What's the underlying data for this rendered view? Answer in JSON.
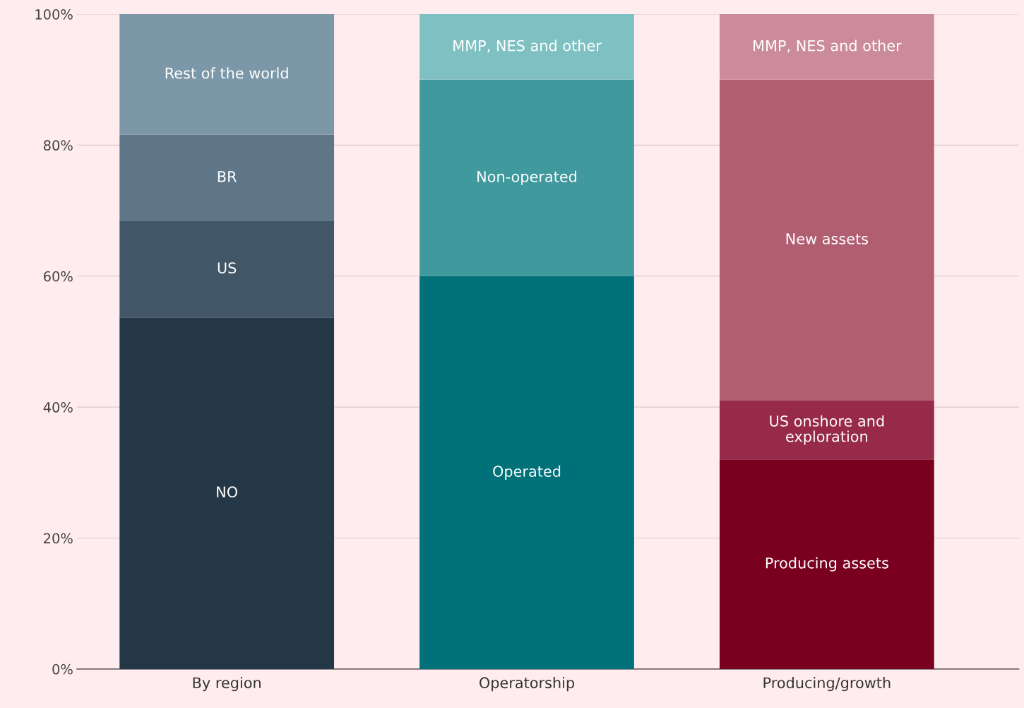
{
  "chart_data": {
    "type": "bar",
    "stacked": true,
    "categories": [
      "By region",
      "Operatorship",
      "Producing/growth"
    ],
    "ylim": [
      0,
      100
    ],
    "yticks": [
      {
        "value": 0,
        "label": "0%"
      },
      {
        "value": 20,
        "label": "20%"
      },
      {
        "value": 40,
        "label": "40%"
      },
      {
        "value": 60,
        "label": "60%"
      },
      {
        "value": 80,
        "label": "80%"
      },
      {
        "value": 100,
        "label": "100%"
      }
    ],
    "grid": "y",
    "legend": false,
    "series": [
      {
        "name": "NO",
        "color": "#243746",
        "values": [
          53.7,
          null,
          null
        ]
      },
      {
        "name": "US",
        "color": "#415667",
        "values": [
          14.7,
          null,
          null
        ]
      },
      {
        "name": "BR",
        "color": "#5f7689",
        "values": [
          13.2,
          null,
          null
        ]
      },
      {
        "name": "Rest of the world",
        "color": "#7c98a8",
        "values": [
          18.4,
          null,
          null
        ]
      },
      {
        "name": "Operated",
        "color": "#007079",
        "values": [
          null,
          60,
          null
        ]
      },
      {
        "name": "Non-operated",
        "color": "#40999c",
        "values": [
          null,
          30,
          null
        ]
      },
      {
        "name": "MMP, NES and other",
        "color": "#7fc1c2",
        "values": [
          null,
          10,
          null
        ]
      },
      {
        "name": "Producing assets",
        "color": "#7a0020",
        "values": [
          null,
          null,
          32
        ]
      },
      {
        "name": "US onshore and\nexploration",
        "color": "#962a48",
        "values": [
          null,
          null,
          9
        ]
      },
      {
        "name": "New assets",
        "color": "#b15e70",
        "values": [
          null,
          null,
          49
        ]
      },
      {
        "name": "MMP, NES and other",
        "color": "#cc8b98",
        "values": [
          null,
          null,
          10
        ]
      }
    ]
  }
}
